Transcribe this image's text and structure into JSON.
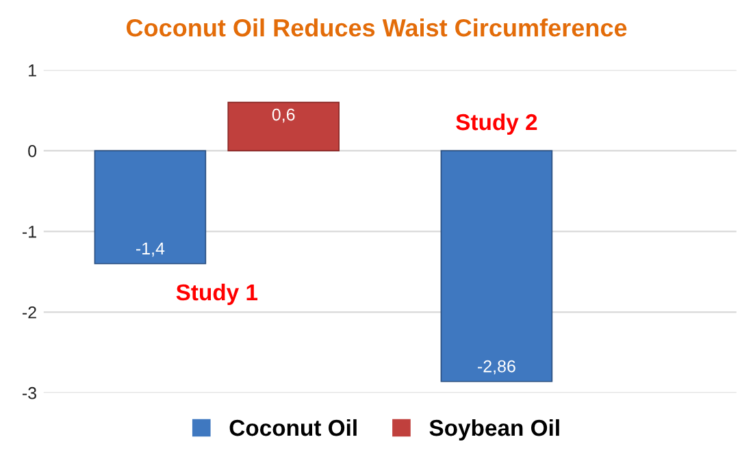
{
  "chart_data": {
    "type": "bar",
    "title": "Coconut Oil Reduces Waist Circumference",
    "categories": [
      "Study 1",
      "Study 2"
    ],
    "series": [
      {
        "name": "Coconut Oil",
        "color": "#3f78c0",
        "values": [
          -1.4,
          -2.86
        ],
        "value_labels": [
          "-1,4",
          "-2,86"
        ]
      },
      {
        "name": "Soybean Oil",
        "color": "#c0403d",
        "values": [
          0.6,
          null
        ],
        "value_labels": [
          "0,6",
          null
        ]
      }
    ],
    "ylim": [
      -3,
      1
    ],
    "yticks": [
      -3,
      -2,
      -1,
      0,
      1
    ],
    "grid": "y",
    "legend": "bottom"
  }
}
